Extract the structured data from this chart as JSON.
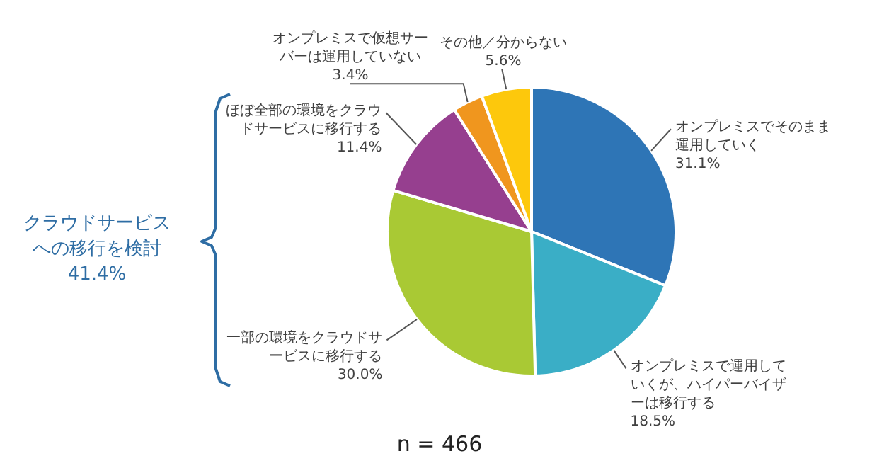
{
  "chart_data": {
    "type": "pie",
    "categories": [
      "オンプレミスでそのまま運用していく",
      "オンプレミスで運用していくが、ハイパーバイザーは移行する",
      "一部の環境をクラウドサービスに移行する",
      "ほぼ全部の環境をクラウドサービスに移行する",
      "オンプレミスで仮想サーバーは運用していない",
      "その他／分からない"
    ],
    "values": [
      31.1,
      18.5,
      30.0,
      11.4,
      3.4,
      5.6
    ],
    "colors": [
      "#2e75b6",
      "#3aaec6",
      "#a9c934",
      "#963f8f",
      "#f0961e",
      "#fdc80c"
    ],
    "value_labels": [
      "31.1%",
      "18.5%",
      "30.0%",
      "11.4%",
      "3.4%",
      "5.6%"
    ],
    "annotations": [
      "クラウドサービスへの移行を検討",
      "41.4%",
      "n = 466"
    ]
  }
}
